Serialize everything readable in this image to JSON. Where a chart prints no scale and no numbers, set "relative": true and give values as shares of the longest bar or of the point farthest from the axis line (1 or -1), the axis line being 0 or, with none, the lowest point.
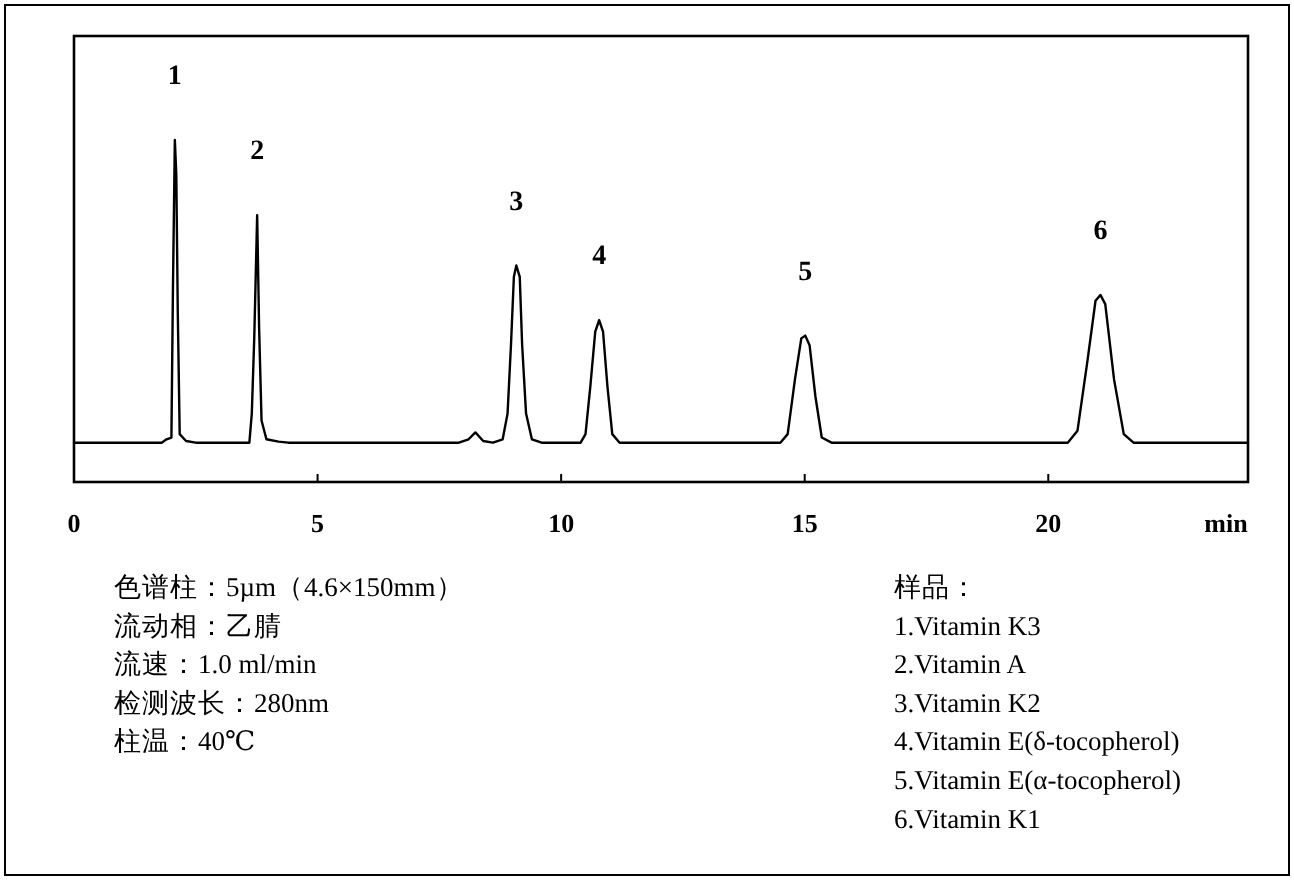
{
  "chart_data": {
    "type": "line",
    "relative": true,
    "xlabel": "min",
    "xlim": [
      0,
      24.1
    ],
    "xticks": [
      0,
      5,
      10,
      15,
      20
    ],
    "tick_labels": "x",
    "grid": false,
    "line_style": "solid",
    "series": [
      {
        "color": "#000000",
        "x": [
          0,
          1.8,
          1.9,
          2.0,
          2.03,
          2.07,
          2.1,
          2.13,
          2.17,
          2.3,
          2.5,
          3.6,
          3.65,
          3.7,
          3.76,
          3.8,
          3.85,
          3.95,
          4.2,
          4.4,
          7.9,
          8.1,
          8.24,
          8.4,
          8.6,
          8.8,
          8.9,
          8.97,
          9.03,
          9.08,
          9.15,
          9.2,
          9.28,
          9.4,
          9.6,
          10.4,
          10.5,
          10.6,
          10.7,
          10.78,
          10.86,
          10.95,
          11.05,
          11.2,
          14.5,
          14.65,
          14.8,
          14.93,
          15.01,
          15.1,
          15.22,
          15.35,
          15.55,
          20.4,
          20.6,
          20.8,
          20.97,
          21.07,
          21.17,
          21.35,
          21.55,
          21.75,
          24.1
        ],
        "values": [
          0.115,
          0.115,
          0.125,
          0.13,
          0.55,
          1.0,
          0.9,
          0.5,
          0.14,
          0.12,
          0.115,
          0.115,
          0.2,
          0.42,
          0.78,
          0.45,
          0.18,
          0.125,
          0.118,
          0.115,
          0.115,
          0.125,
          0.145,
          0.12,
          0.115,
          0.125,
          0.2,
          0.4,
          0.6,
          0.633,
          0.6,
          0.4,
          0.2,
          0.125,
          0.115,
          0.115,
          0.14,
          0.28,
          0.44,
          0.473,
          0.44,
          0.28,
          0.14,
          0.115,
          0.115,
          0.14,
          0.3,
          0.42,
          0.428,
          0.4,
          0.25,
          0.13,
          0.115,
          0.115,
          0.15,
          0.35,
          0.53,
          0.547,
          0.52,
          0.3,
          0.14,
          0.115,
          0.115
        ]
      }
    ],
    "annotations": [
      {
        "text": "1",
        "x": 2.07,
        "y": 1.0
      },
      {
        "text": "2",
        "x": 3.76,
        "y": 0.78
      },
      {
        "text": "3",
        "x": 9.08,
        "y": 0.633
      },
      {
        "text": "4",
        "x": 10.78,
        "y": 0.473
      },
      {
        "text": "5",
        "x": 15.01,
        "y": 0.428
      },
      {
        "text": "6",
        "x": 21.07,
        "y": 0.547
      },
      "色谱柱：5µm（4.6×150mm）",
      "流动相：乙腈",
      "流速：1.0 ml/min",
      "检测波长：280nm",
      "柱温：40℃",
      "样品：",
      "1.Vitamin K3",
      "2.Vitamin A",
      "3.Vitamin K2",
      "4.Vitamin E(δ-tocopherol)",
      "5.Vitamin E(α-tocopherol)",
      "6.Vitamin K1"
    ]
  }
}
